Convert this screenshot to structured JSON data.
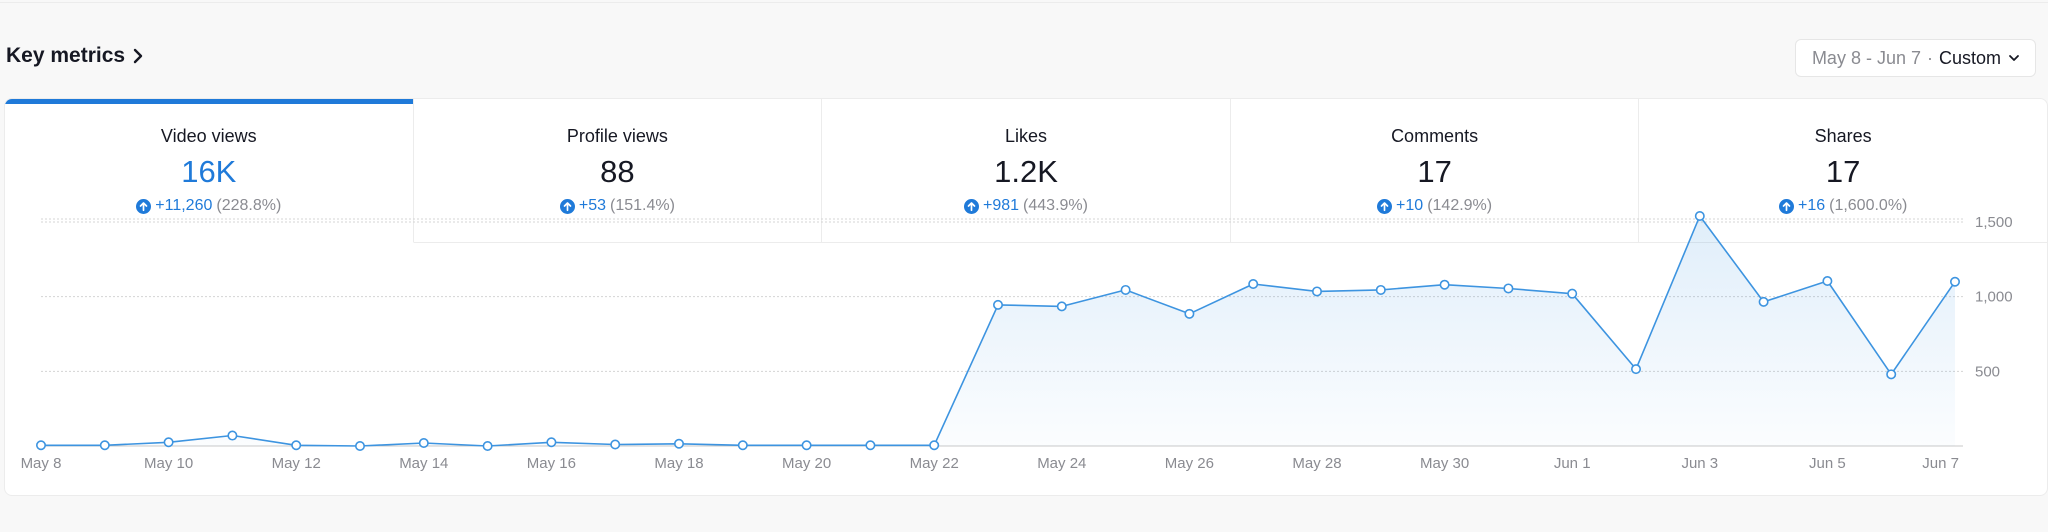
{
  "header": {
    "title": "Key metrics"
  },
  "date_picker": {
    "range": "May 8 - Jun 7",
    "separator": "·",
    "mode": "Custom"
  },
  "tabs": [
    {
      "label": "Video views",
      "value": "16K",
      "delta": "+11,260",
      "pct": "(228.8%)",
      "active": true
    },
    {
      "label": "Profile views",
      "value": "88",
      "delta": "+53",
      "pct": "(151.4%)",
      "active": false
    },
    {
      "label": "Likes",
      "value": "1.2K",
      "delta": "+981",
      "pct": "(443.9%)",
      "active": false
    },
    {
      "label": "Comments",
      "value": "17",
      "delta": "+10",
      "pct": "(142.9%)",
      "active": false
    },
    {
      "label": "Shares",
      "value": "17",
      "delta": "+16",
      "pct": "(1,600.0%)",
      "active": false
    }
  ],
  "colors": {
    "accent": "#1f7ad9",
    "line": "#3d94e0",
    "muted": "#8a8b91"
  },
  "chart_data": {
    "type": "area",
    "x": [
      "May 8",
      "May 9",
      "May 10",
      "May 11",
      "May 12",
      "May 13",
      "May 14",
      "May 15",
      "May 16",
      "May 17",
      "May 18",
      "May 19",
      "May 20",
      "May 21",
      "May 22",
      "May 23",
      "May 24",
      "May 25",
      "May 26",
      "May 27",
      "May 28",
      "May 29",
      "May 30",
      "May 31",
      "Jun 1",
      "Jun 2",
      "Jun 3",
      "Jun 4",
      "Jun 5",
      "Jun 6",
      "Jun 7"
    ],
    "xticks": [
      "May 8",
      "May 10",
      "May 12",
      "May 14",
      "May 16",
      "May 18",
      "May 20",
      "May 22",
      "May 24",
      "May 26",
      "May 28",
      "May 30",
      "Jun 1",
      "Jun 3",
      "Jun 5",
      "Jun 7"
    ],
    "series": [
      {
        "values": [
          5,
          5,
          25,
          70,
          5,
          0,
          20,
          0,
          25,
          10,
          15,
          5,
          5,
          5,
          5,
          945,
          935,
          1045,
          885,
          1085,
          1035,
          1045,
          1080,
          1055,
          1020,
          515,
          1540,
          965,
          1105,
          480,
          1100
        ]
      }
    ],
    "yticks": [
      {
        "value": 500,
        "label": "500"
      },
      {
        "value": 1000,
        "label": "1,000"
      },
      {
        "value": 1500,
        "label": "1,500"
      }
    ],
    "ylim": [
      0,
      1500
    ],
    "grid": true
  }
}
